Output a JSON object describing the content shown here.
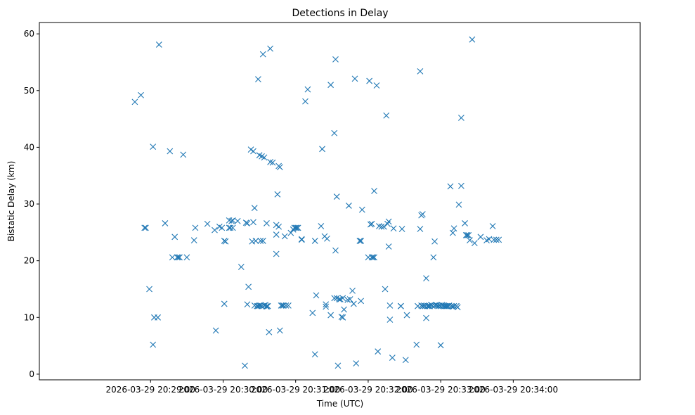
{
  "chart_data": {
    "type": "scatter",
    "title": "Detections in Delay",
    "xlabel": "Time (UTC)",
    "ylabel": "Bistatic Delay (km)",
    "x_unit": "seconds",
    "xlim": [
      -92,
      405
    ],
    "ylim": [
      -1,
      62
    ],
    "x_ticks": [
      {
        "value": 0,
        "label": "2026-03-29 20:29:00"
      },
      {
        "value": 60,
        "label": "2026-03-29 20:30:00"
      },
      {
        "value": 120,
        "label": "2026-03-29 20:31:00"
      },
      {
        "value": 180,
        "label": "2026-03-29 20:32:00"
      },
      {
        "value": 240,
        "label": "2026-03-29 20:33:00"
      },
      {
        "value": 300,
        "label": "2026-03-29 20:34:00"
      }
    ],
    "y_ticks": [
      0,
      10,
      20,
      30,
      40,
      50,
      60
    ],
    "marker": "x",
    "color": "#1f77b4",
    "grid": false,
    "points": [
      [
        -13,
        48.0
      ],
      [
        -8,
        49.2
      ],
      [
        -5,
        25.8
      ],
      [
        -4,
        25.8
      ],
      [
        -1,
        15.0
      ],
      [
        2,
        40.1
      ],
      [
        2,
        5.2
      ],
      [
        3,
        10.0
      ],
      [
        6,
        10.0
      ],
      [
        7,
        58.1
      ],
      [
        12,
        26.6
      ],
      [
        16,
        39.3
      ],
      [
        18,
        20.6
      ],
      [
        20,
        24.2
      ],
      [
        22,
        20.6
      ],
      [
        23,
        20.6
      ],
      [
        24,
        20.6
      ],
      [
        27,
        38.7
      ],
      [
        30,
        20.6
      ],
      [
        36,
        23.6
      ],
      [
        37,
        25.8
      ],
      [
        47,
        26.5
      ],
      [
        53,
        25.4
      ],
      [
        54,
        7.7
      ],
      [
        57,
        26.0
      ],
      [
        59,
        25.8
      ],
      [
        61,
        12.4
      ],
      [
        61,
        23.5
      ],
      [
        62,
        23.4
      ],
      [
        65,
        27.1
      ],
      [
        65,
        25.8
      ],
      [
        66,
        25.8
      ],
      [
        67,
        27.0
      ],
      [
        68,
        27.1
      ],
      [
        68,
        25.8
      ],
      [
        72,
        27.0
      ],
      [
        75,
        18.9
      ],
      [
        78,
        1.5
      ],
      [
        79,
        26.7
      ],
      [
        80,
        12.3
      ],
      [
        80,
        26.6
      ],
      [
        81,
        15.4
      ],
      [
        83,
        39.6
      ],
      [
        84,
        23.4
      ],
      [
        85,
        26.8
      ],
      [
        85,
        39.3
      ],
      [
        86,
        29.3
      ],
      [
        86,
        12.1
      ],
      [
        87,
        23.5
      ],
      [
        88,
        12.0
      ],
      [
        89,
        52.0
      ],
      [
        89,
        12.0
      ],
      [
        90,
        38.6
      ],
      [
        90,
        12.1
      ],
      [
        91,
        12.1
      ],
      [
        91,
        23.5
      ],
      [
        92,
        38.4
      ],
      [
        92,
        12.0
      ],
      [
        93,
        56.4
      ],
      [
        93,
        23.5
      ],
      [
        94,
        12.1
      ],
      [
        94,
        38.2
      ],
      [
        95,
        12.2
      ],
      [
        96,
        11.9
      ],
      [
        96,
        26.6
      ],
      [
        96,
        12.0
      ],
      [
        97,
        12.0
      ],
      [
        98,
        7.4
      ],
      [
        99,
        57.4
      ],
      [
        99,
        37.4
      ],
      [
        101,
        37.3
      ],
      [
        104,
        21.2
      ],
      [
        104,
        24.6
      ],
      [
        104,
        26.3
      ],
      [
        105,
        31.7
      ],
      [
        106,
        26.0
      ],
      [
        106,
        36.7
      ],
      [
        107,
        7.7
      ],
      [
        107,
        36.5
      ],
      [
        108,
        12.1
      ],
      [
        109,
        12.1
      ],
      [
        110,
        12.1
      ],
      [
        111,
        24.3
      ],
      [
        112,
        12.1
      ],
      [
        114,
        12.1
      ],
      [
        116,
        24.9
      ],
      [
        118,
        25.5
      ],
      [
        119,
        25.8
      ],
      [
        120,
        25.8
      ],
      [
        121,
        25.8
      ],
      [
        122,
        25.8
      ],
      [
        125,
        23.7
      ],
      [
        125,
        23.8
      ],
      [
        128,
        48.1
      ],
      [
        130,
        50.2
      ],
      [
        134,
        10.8
      ],
      [
        136,
        23.5
      ],
      [
        136,
        3.5
      ],
      [
        137,
        13.9
      ],
      [
        141,
        26.1
      ],
      [
        142,
        39.7
      ],
      [
        144,
        24.3
      ],
      [
        145,
        12.3
      ],
      [
        145,
        11.9
      ],
      [
        146,
        23.9
      ],
      [
        149,
        10.4
      ],
      [
        149,
        51.0
      ],
      [
        152,
        42.5
      ],
      [
        152,
        13.4
      ],
      [
        153,
        21.8
      ],
      [
        153,
        55.5
      ],
      [
        154,
        31.3
      ],
      [
        154,
        13.4
      ],
      [
        155,
        1.5
      ],
      [
        156,
        13.2
      ],
      [
        157,
        13.2
      ],
      [
        158,
        10.1
      ],
      [
        159,
        10.0
      ],
      [
        159,
        13.4
      ],
      [
        160,
        11.4
      ],
      [
        163,
        13.1
      ],
      [
        164,
        29.7
      ],
      [
        165,
        13.2
      ],
      [
        167,
        14.7
      ],
      [
        168,
        12.4
      ],
      [
        169,
        52.1
      ],
      [
        170,
        1.9
      ],
      [
        173,
        23.5
      ],
      [
        174,
        23.5
      ],
      [
        174,
        12.9
      ],
      [
        175,
        29.0
      ],
      [
        180,
        20.6
      ],
      [
        181,
        51.7
      ],
      [
        182,
        26.4
      ],
      [
        183,
        26.5
      ],
      [
        183,
        20.6
      ],
      [
        184,
        20.6
      ],
      [
        185,
        20.6
      ],
      [
        185,
        32.3
      ],
      [
        187,
        50.9
      ],
      [
        188,
        4.0
      ],
      [
        189,
        26.1
      ],
      [
        191,
        26.0
      ],
      [
        193,
        26.0
      ],
      [
        194,
        15.0
      ],
      [
        195,
        45.6
      ],
      [
        196,
        26.5
      ],
      [
        197,
        26.9
      ],
      [
        197,
        22.5
      ],
      [
        198,
        9.6
      ],
      [
        198,
        12.1
      ],
      [
        200,
        2.9
      ],
      [
        201,
        25.7
      ],
      [
        207,
        12.0
      ],
      [
        207,
        12.0
      ],
      [
        208,
        25.6
      ],
      [
        211,
        2.5
      ],
      [
        212,
        10.4
      ],
      [
        220,
        5.2
      ],
      [
        221,
        12.0
      ],
      [
        223,
        53.4
      ],
      [
        223,
        25.6
      ],
      [
        224,
        28.0
      ],
      [
        224,
        12.1
      ],
      [
        225,
        28.2
      ],
      [
        225,
        12.0
      ],
      [
        226,
        12.1
      ],
      [
        227,
        12.0
      ],
      [
        228,
        9.9
      ],
      [
        228,
        16.9
      ],
      [
        229,
        12.0
      ],
      [
        230,
        12.0
      ],
      [
        231,
        12.0
      ],
      [
        232,
        12.2
      ],
      [
        233,
        12.1
      ],
      [
        234,
        20.6
      ],
      [
        235,
        23.4
      ],
      [
        235,
        12.1
      ],
      [
        236,
        12.2
      ],
      [
        237,
        12.1
      ],
      [
        238,
        12.0
      ],
      [
        239,
        12.1
      ],
      [
        240,
        5.1
      ],
      [
        240,
        12.0
      ],
      [
        241,
        12.2
      ],
      [
        242,
        12.1
      ],
      [
        243,
        12.0
      ],
      [
        244,
        12.0
      ],
      [
        245,
        12.0
      ],
      [
        246,
        12.0
      ],
      [
        247,
        12.1
      ],
      [
        248,
        33.1
      ],
      [
        249,
        12.0
      ],
      [
        250,
        11.9
      ],
      [
        250,
        24.9
      ],
      [
        251,
        25.7
      ],
      [
        251,
        12.0
      ],
      [
        253,
        12.0
      ],
      [
        254,
        11.8
      ],
      [
        255,
        29.9
      ],
      [
        257,
        33.2
      ],
      [
        257,
        45.2
      ],
      [
        260,
        26.6
      ],
      [
        261,
        24.5
      ],
      [
        262,
        24.5
      ],
      [
        263,
        24.5
      ],
      [
        264,
        23.6
      ],
      [
        266,
        59.0
      ],
      [
        268,
        23.1
      ],
      [
        273,
        24.2
      ],
      [
        278,
        23.6
      ],
      [
        280,
        23.8
      ],
      [
        283,
        26.1
      ],
      [
        284,
        23.7
      ],
      [
        286,
        23.7
      ],
      [
        288,
        23.7
      ]
    ]
  }
}
